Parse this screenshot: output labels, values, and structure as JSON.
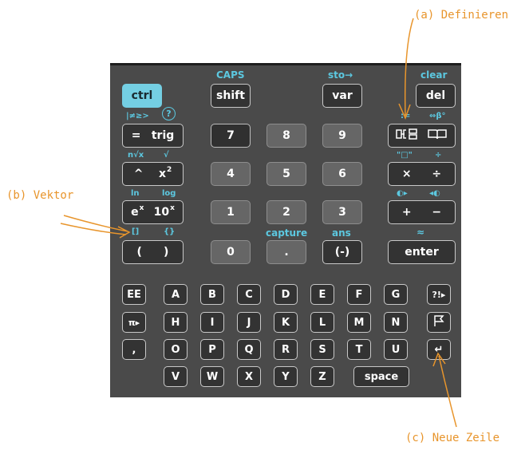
{
  "annotations": {
    "a": "(a) Definieren",
    "b": "(b) Vektor",
    "c": "(c) Neue Zeile"
  },
  "labels": {
    "caps": "CAPS",
    "sto": "sto→",
    "clear": "clear",
    "relops": "|≠≥>",
    "help": "?",
    "assign": ":=",
    "greek": "⇔β°",
    "nroot": "n√x",
    "sqrt": "√",
    "quote": "\"□\"",
    "divide_small": "÷",
    "ln": "ln",
    "log": "log",
    "left_cursor": "◐▸",
    "right_cursor": "◂◐",
    "brackets": "[]",
    "braces": "{}",
    "capture": "capture",
    "ans": "ans",
    "approx": "≈"
  },
  "keys": {
    "ctrl": "ctrl",
    "shift": "shift",
    "var": "var",
    "del": "del",
    "eq": "=",
    "trig": "trig",
    "k7": "7",
    "k8": "8",
    "k9": "9",
    "caret": "^",
    "x": "x",
    "two": "2",
    "k4": "4",
    "k5": "5",
    "k6": "6",
    "times": "×",
    "div": "÷",
    "e": "e",
    "ex_sup": "x",
    "ten": "10",
    "tenx_sup": "x",
    "k1": "1",
    "k2": "2",
    "k3": "3",
    "plus": "+",
    "minus": "−",
    "lparen": "(",
    "rparen": ")",
    "k0": "0",
    "dot": ".",
    "neg": "(-)",
    "enter": "enter",
    "ee": "EE",
    "A": "A",
    "B": "B",
    "C": "C",
    "D": "D",
    "E": "E",
    "F": "F",
    "G": "G",
    "punct": "?!▸",
    "pi": "π▸",
    "H": "H",
    "I": "I",
    "J": "J",
    "K": "K",
    "L": "L",
    "M": "M",
    "N": "N",
    "flag": "⚐",
    "comma": ",",
    "O": "O",
    "P": "P",
    "Q": "Q",
    "R": "R",
    "S": "S",
    "T": "T",
    "U": "U",
    "newline": "↵",
    "V": "V",
    "W": "W",
    "X": "X",
    "Y": "Y",
    "Z": "Z",
    "space": "space"
  },
  "icons": {
    "template": "template-icon",
    "catalog": "book-icon",
    "help": "help-circle-icon",
    "flag": "flag-icon"
  },
  "colors": {
    "accent": "#5cc8e0",
    "annotation": "#e8952c",
    "ctrl": "#74cfe3"
  }
}
